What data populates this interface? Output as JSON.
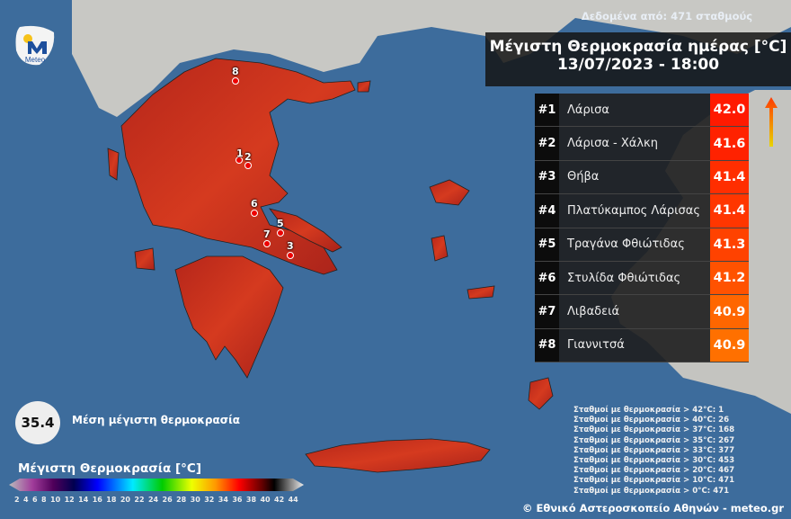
{
  "source_note": "Δεδομένα από: 471 σταθμούς",
  "title": {
    "line1": "Μέγιστη Θερμοκρασία ημέρας [°C]",
    "line2": "13/07/2023 - 18:00"
  },
  "ranking": [
    {
      "rank": "#1",
      "name": "Λάρισα",
      "value": "42.0",
      "color": "#ff1a00"
    },
    {
      "rank": "#2",
      "name": "Λάρισα - Χάλκη",
      "value": "41.6",
      "color": "#ff2200"
    },
    {
      "rank": "#3",
      "name": "Θήβα",
      "value": "41.4",
      "color": "#ff2e00"
    },
    {
      "rank": "#4",
      "name": "Πλατύκαμπος Λάρισας",
      "value": "41.4",
      "color": "#ff3600"
    },
    {
      "rank": "#5",
      "name": "Τραγάνα Φθιώτιδας",
      "value": "41.3",
      "color": "#ff4200"
    },
    {
      "rank": "#6",
      "name": "Στυλίδα Φθιώτιδας",
      "value": "41.2",
      "color": "#ff5200"
    },
    {
      "rank": "#7",
      "name": "Λιβαδειά",
      "value": "40.9",
      "color": "#ff6600"
    },
    {
      "rank": "#8",
      "name": "Γιαννιτσά",
      "value": "40.9",
      "color": "#ff7000"
    }
  ],
  "markers": [
    "1",
    "2",
    "3",
    "5",
    "6",
    "7",
    "8"
  ],
  "average": {
    "value": "35.4",
    "label": "Μέση μέγιστη θερμοκρασία"
  },
  "legend": {
    "title": "Μέγιστη Θερμοκρασία [°C]",
    "ticks": [
      "2",
      "4",
      "6",
      "8",
      "10",
      "12",
      "14",
      "16",
      "18",
      "20",
      "22",
      "24",
      "26",
      "28",
      "30",
      "32",
      "34",
      "36",
      "38",
      "40",
      "42",
      "44"
    ]
  },
  "stats": [
    "Σταθμοί με θερμοκρασία > 42°C: 1",
    "Σταθμοί με θερμοκρασία > 40°C: 26",
    "Σταθμοί με θερμοκρασία > 37°C: 168",
    "Σταθμοί με θερμοκρασία > 35°C: 267",
    "Σταθμοί με θερμοκρασία > 33°C: 377",
    "Σταθμοί με θερμοκρασία > 30°C: 453",
    "Σταθμοί με θερμοκρασία > 20°C: 467",
    "Σταθμοί με θερμοκρασία > 10°C: 471",
    "Σταθμοί με θερμοκρασία > 0°C: 471"
  ],
  "logo_text": "Meteo",
  "copyright": "© Εθνικό Αστεροσκοπείο Αθηνών - meteo.gr",
  "colors": {
    "sea": "#3d6c9c",
    "land_other": "#c9c9c6",
    "greece": "#c9321d"
  }
}
